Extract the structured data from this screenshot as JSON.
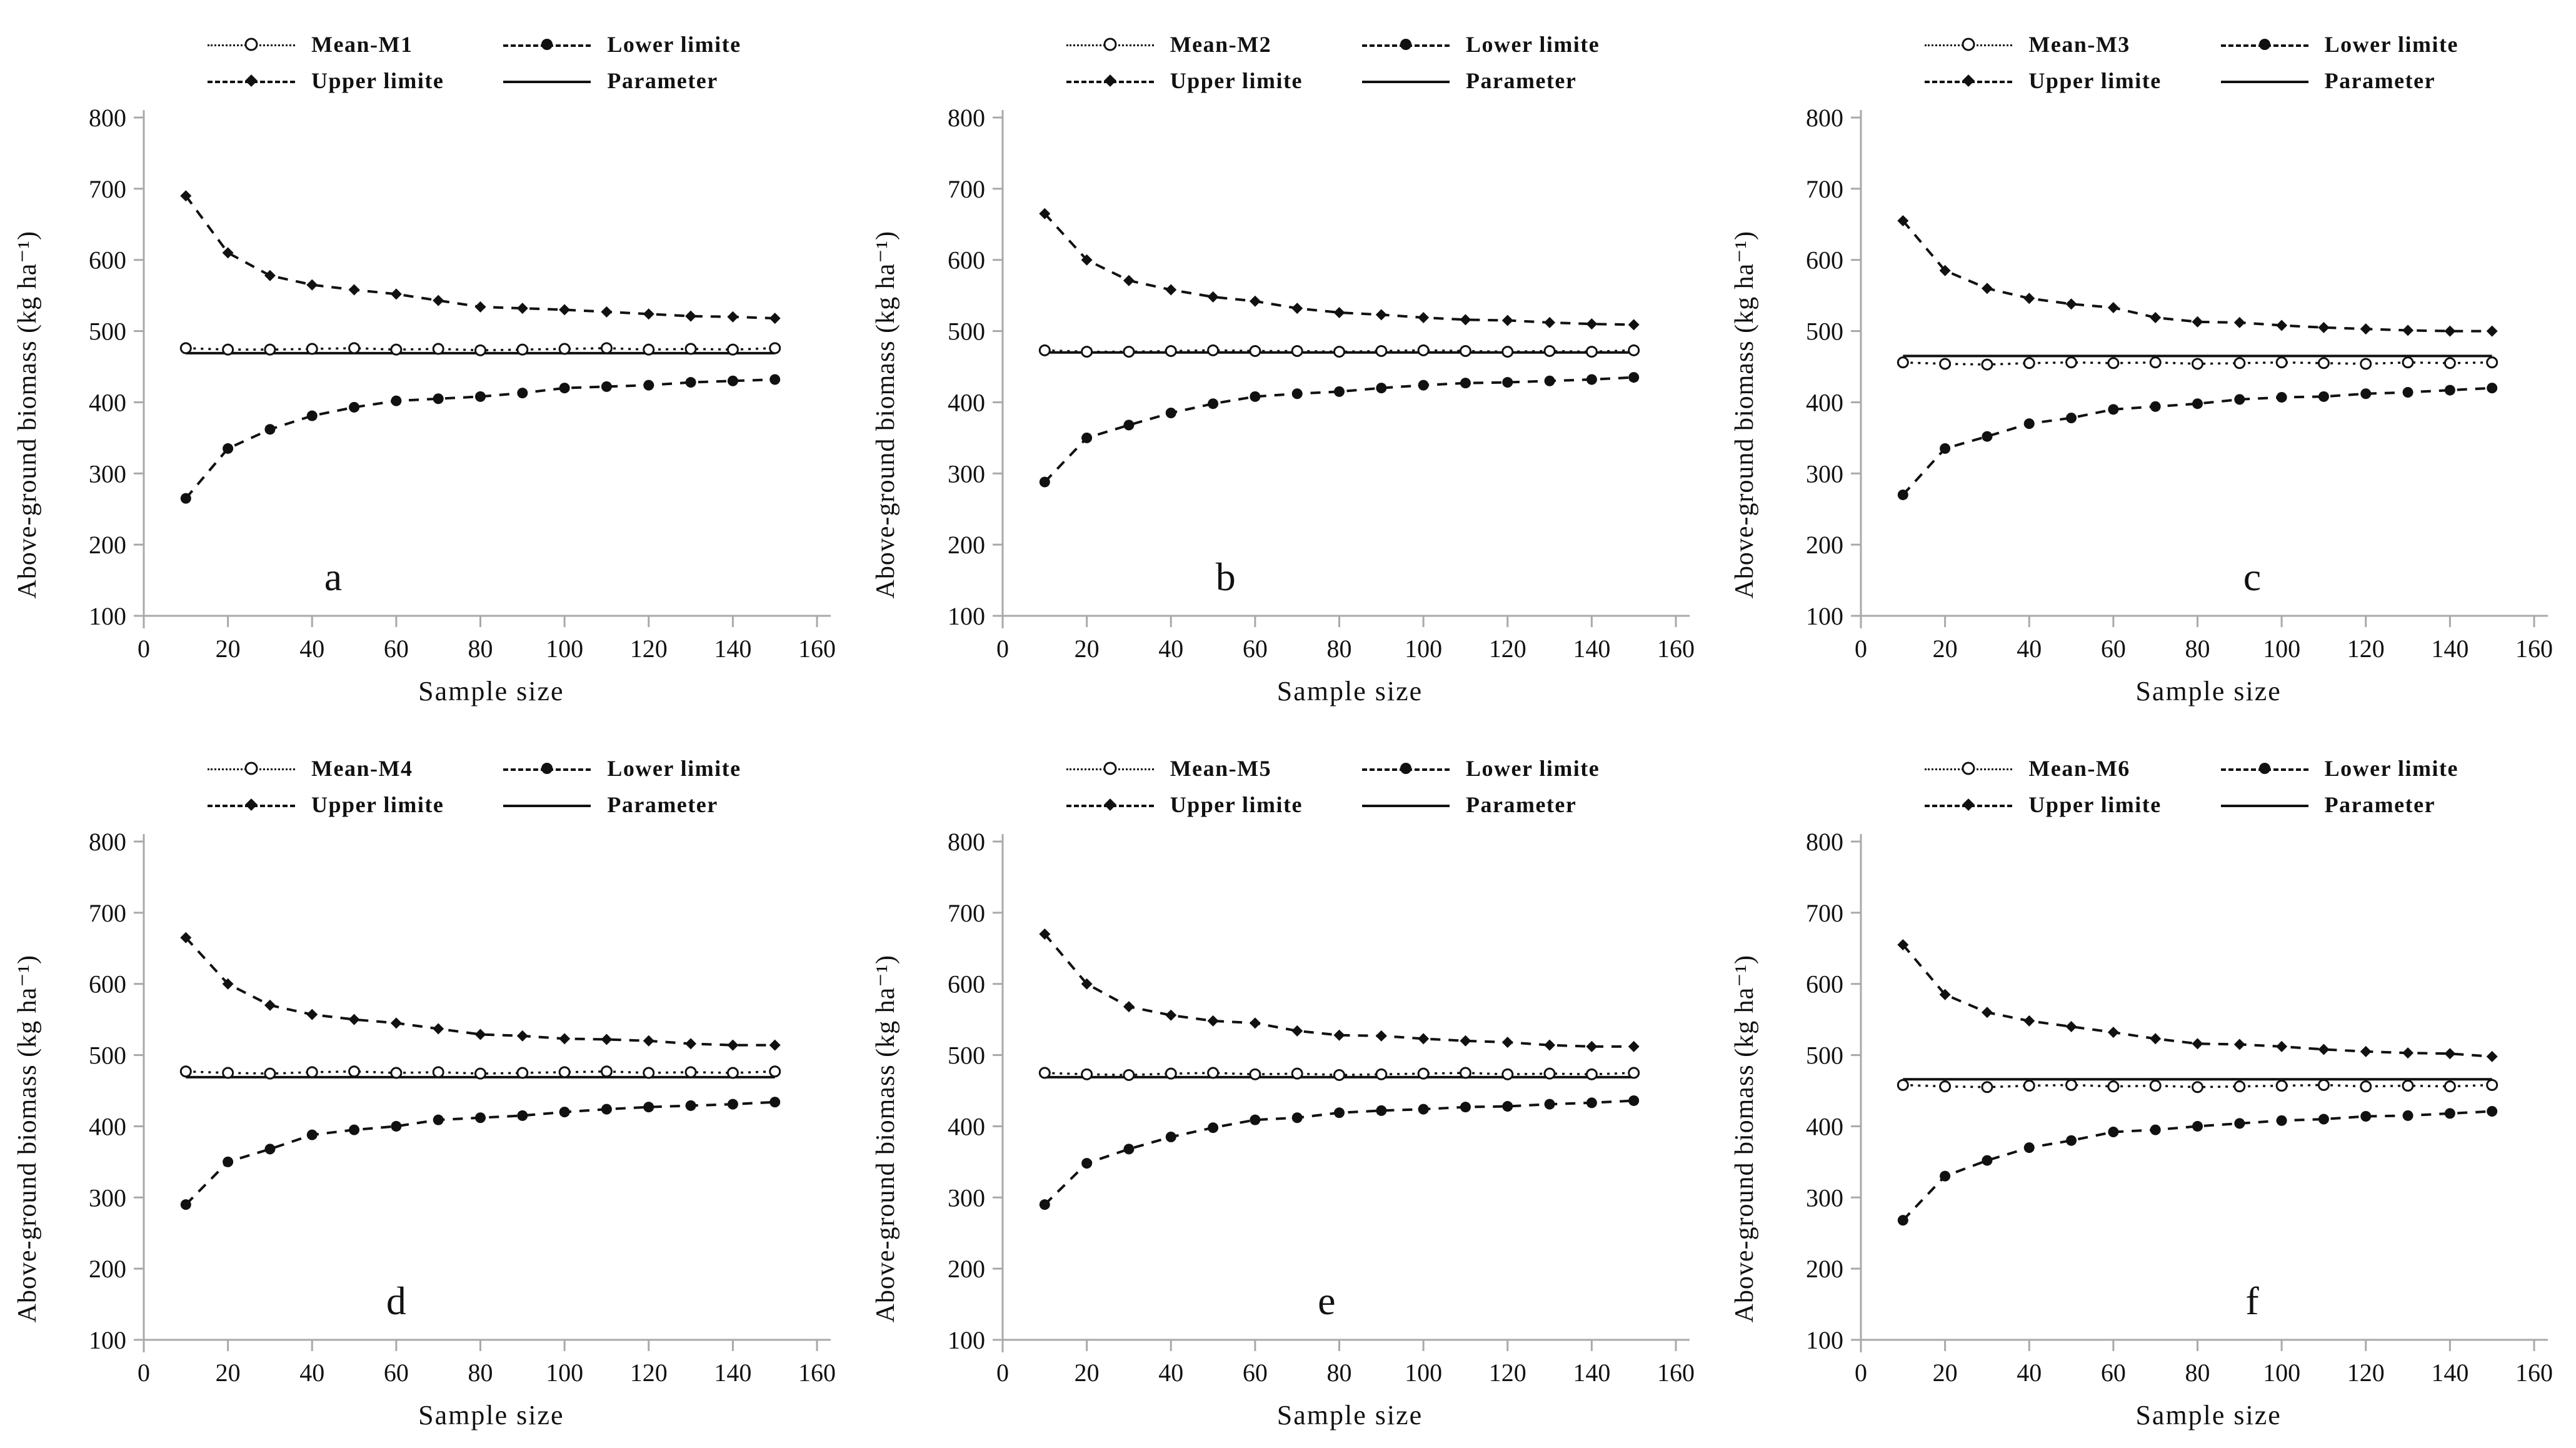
{
  "figure": {
    "background": "#ffffff",
    "text_color": "#111111",
    "axis_color": "#a9a9a9",
    "series_color": "#111111"
  },
  "chart_data": [
    {
      "type": "line",
      "panel_label": "a",
      "panel_label_x": 45,
      "xlabel": "Sample size",
      "ylabel": "Above-ground biomass (kg ha⁻¹)",
      "xlim": [
        0,
        160
      ],
      "ylim": [
        100,
        800
      ],
      "x_ticks": [
        0,
        20,
        40,
        60,
        80,
        100,
        120,
        140,
        160
      ],
      "y_ticks": [
        100,
        200,
        300,
        400,
        500,
        600,
        700,
        800
      ],
      "legend_position": "top",
      "x": [
        10,
        20,
        30,
        40,
        50,
        60,
        70,
        80,
        90,
        100,
        110,
        120,
        130,
        140,
        150
      ],
      "series": [
        {
          "name": "Mean-M1",
          "marker": "open-circle",
          "line": "dotted",
          "values": [
            476,
            474,
            474,
            475,
            476,
            474,
            475,
            473,
            474,
            475,
            476,
            474,
            475,
            474,
            476
          ]
        },
        {
          "name": "Lower limite",
          "marker": "filled-circle",
          "line": "dashed",
          "values": [
            265,
            335,
            362,
            381,
            393,
            402,
            405,
            408,
            413,
            420,
            422,
            424,
            428,
            430,
            432
          ]
        },
        {
          "name": "Upper limite",
          "marker": "filled-diamond",
          "line": "dashed",
          "values": [
            690,
            610,
            578,
            565,
            558,
            552,
            543,
            534,
            532,
            530,
            527,
            524,
            521,
            520,
            518
          ]
        },
        {
          "name": "Parameter",
          "marker": "none",
          "line": "solid",
          "values": [
            469,
            469,
            469,
            469,
            469,
            469,
            469,
            469,
            469,
            469,
            469,
            469,
            469,
            469,
            469
          ]
        }
      ]
    },
    {
      "type": "line",
      "panel_label": "b",
      "panel_label_x": 53,
      "xlabel": "Sample size",
      "ylabel": "Above-ground biomass (kg ha⁻¹)",
      "xlim": [
        0,
        160
      ],
      "ylim": [
        100,
        800
      ],
      "x_ticks": [
        0,
        20,
        40,
        60,
        80,
        100,
        120,
        140,
        160
      ],
      "y_ticks": [
        100,
        200,
        300,
        400,
        500,
        600,
        700,
        800
      ],
      "legend_position": "top",
      "x": [
        10,
        20,
        30,
        40,
        50,
        60,
        70,
        80,
        90,
        100,
        110,
        120,
        130,
        140,
        150
      ],
      "series": [
        {
          "name": "Mean-M2",
          "marker": "open-circle",
          "line": "dotted",
          "values": [
            473,
            471,
            471,
            472,
            473,
            472,
            472,
            471,
            472,
            473,
            472,
            471,
            472,
            471,
            473
          ]
        },
        {
          "name": "Lower limite",
          "marker": "filled-circle",
          "line": "dashed",
          "values": [
            288,
            350,
            368,
            385,
            398,
            408,
            412,
            415,
            420,
            424,
            427,
            428,
            430,
            432,
            435
          ]
        },
        {
          "name": "Upper limite",
          "marker": "filled-diamond",
          "line": "dashed",
          "values": [
            665,
            600,
            571,
            558,
            548,
            542,
            532,
            526,
            523,
            519,
            516,
            515,
            512,
            510,
            509
          ]
        },
        {
          "name": "Parameter",
          "marker": "none",
          "line": "solid",
          "values": [
            470,
            470,
            470,
            470,
            470,
            470,
            470,
            470,
            470,
            470,
            470,
            470,
            470,
            470,
            470
          ]
        }
      ]
    },
    {
      "type": "line",
      "panel_label": "c",
      "panel_label_x": 93,
      "xlabel": "Sample size",
      "ylabel": "Above-ground biomass (kg ha⁻¹)",
      "xlim": [
        0,
        160
      ],
      "ylim": [
        100,
        800
      ],
      "x_ticks": [
        0,
        20,
        40,
        60,
        80,
        100,
        120,
        140,
        160
      ],
      "y_ticks": [
        100,
        200,
        300,
        400,
        500,
        600,
        700,
        800
      ],
      "legend_position": "top",
      "x": [
        10,
        20,
        30,
        40,
        50,
        60,
        70,
        80,
        90,
        100,
        110,
        120,
        130,
        140,
        150
      ],
      "series": [
        {
          "name": "Mean-M3",
          "marker": "open-circle",
          "line": "dotted",
          "values": [
            456,
            454,
            453,
            455,
            456,
            455,
            456,
            454,
            455,
            456,
            455,
            454,
            456,
            455,
            456
          ]
        },
        {
          "name": "Lower limite",
          "marker": "filled-circle",
          "line": "dashed",
          "values": [
            270,
            335,
            352,
            370,
            378,
            390,
            394,
            398,
            404,
            407,
            408,
            412,
            414,
            417,
            420
          ]
        },
        {
          "name": "Upper limite",
          "marker": "filled-diamond",
          "line": "dashed",
          "values": [
            655,
            585,
            560,
            546,
            538,
            533,
            519,
            513,
            512,
            508,
            505,
            503,
            501,
            500,
            500
          ]
        },
        {
          "name": "Parameter",
          "marker": "none",
          "line": "solid",
          "values": [
            465,
            465,
            465,
            465,
            465,
            465,
            465,
            465,
            465,
            465,
            465,
            465,
            465,
            465,
            465
          ]
        }
      ]
    },
    {
      "type": "line",
      "panel_label": "d",
      "panel_label_x": 60,
      "xlabel": "Sample size",
      "ylabel": "Above-ground biomass (kg ha⁻¹)",
      "xlim": [
        0,
        160
      ],
      "ylim": [
        100,
        800
      ],
      "x_ticks": [
        0,
        20,
        40,
        60,
        80,
        100,
        120,
        140,
        160
      ],
      "y_ticks": [
        100,
        200,
        300,
        400,
        500,
        600,
        700,
        800
      ],
      "legend_position": "top",
      "x": [
        10,
        20,
        30,
        40,
        50,
        60,
        70,
        80,
        90,
        100,
        110,
        120,
        130,
        140,
        150
      ],
      "series": [
        {
          "name": "Mean-M4",
          "marker": "open-circle",
          "line": "dotted",
          "values": [
            477,
            475,
            474,
            476,
            477,
            475,
            476,
            474,
            475,
            476,
            477,
            475,
            476,
            475,
            477
          ]
        },
        {
          "name": "Lower limite",
          "marker": "filled-circle",
          "line": "dashed",
          "values": [
            290,
            350,
            368,
            388,
            395,
            400,
            409,
            412,
            415,
            420,
            424,
            427,
            429,
            431,
            434
          ]
        },
        {
          "name": "Upper limite",
          "marker": "filled-diamond",
          "line": "dashed",
          "values": [
            665,
            600,
            570,
            557,
            550,
            545,
            537,
            529,
            527,
            523,
            522,
            520,
            516,
            514,
            514
          ]
        },
        {
          "name": "Parameter",
          "marker": "none",
          "line": "solid",
          "values": [
            469,
            469,
            469,
            469,
            469,
            469,
            469,
            469,
            469,
            469,
            469,
            469,
            469,
            469,
            469
          ]
        }
      ]
    },
    {
      "type": "line",
      "panel_label": "e",
      "panel_label_x": 77,
      "xlabel": "Sample size",
      "ylabel": "Above-ground biomass (kg ha⁻¹)",
      "xlim": [
        0,
        160
      ],
      "ylim": [
        100,
        800
      ],
      "x_ticks": [
        0,
        20,
        40,
        60,
        80,
        100,
        120,
        140,
        160
      ],
      "y_ticks": [
        100,
        200,
        300,
        400,
        500,
        600,
        700,
        800
      ],
      "legend_position": "top",
      "x": [
        10,
        20,
        30,
        40,
        50,
        60,
        70,
        80,
        90,
        100,
        110,
        120,
        130,
        140,
        150
      ],
      "series": [
        {
          "name": "Mean-M5",
          "marker": "open-circle",
          "line": "dotted",
          "values": [
            475,
            473,
            472,
            474,
            475,
            473,
            474,
            472,
            473,
            474,
            475,
            473,
            474,
            473,
            475
          ]
        },
        {
          "name": "Lower limite",
          "marker": "filled-circle",
          "line": "dashed",
          "values": [
            290,
            348,
            368,
            385,
            398,
            409,
            412,
            419,
            422,
            424,
            427,
            428,
            431,
            433,
            436
          ]
        },
        {
          "name": "Upper limite",
          "marker": "filled-diamond",
          "line": "dashed",
          "values": [
            670,
            600,
            568,
            556,
            548,
            545,
            534,
            528,
            527,
            523,
            520,
            518,
            514,
            512,
            512
          ]
        },
        {
          "name": "Parameter",
          "marker": "none",
          "line": "solid",
          "values": [
            469,
            469,
            469,
            469,
            469,
            469,
            469,
            469,
            469,
            469,
            469,
            469,
            469,
            469,
            469
          ]
        }
      ]
    },
    {
      "type": "line",
      "panel_label": "f",
      "panel_label_x": 93,
      "xlabel": "Sample size",
      "ylabel": "Above-ground biomass (kg ha⁻¹)",
      "xlim": [
        0,
        160
      ],
      "ylim": [
        100,
        800
      ],
      "x_ticks": [
        0,
        20,
        40,
        60,
        80,
        100,
        120,
        140,
        160
      ],
      "y_ticks": [
        100,
        200,
        300,
        400,
        500,
        600,
        700,
        800
      ],
      "legend_position": "top",
      "x": [
        10,
        20,
        30,
        40,
        50,
        60,
        70,
        80,
        90,
        100,
        110,
        120,
        130,
        140,
        150
      ],
      "series": [
        {
          "name": "Mean-M6",
          "marker": "open-circle",
          "line": "dotted",
          "values": [
            458,
            456,
            455,
            457,
            458,
            456,
            457,
            455,
            456,
            457,
            458,
            456,
            457,
            456,
            458
          ]
        },
        {
          "name": "Lower limite",
          "marker": "filled-circle",
          "line": "dashed",
          "values": [
            268,
            330,
            352,
            370,
            380,
            392,
            395,
            400,
            404,
            408,
            410,
            414,
            415,
            418,
            421
          ]
        },
        {
          "name": "Upper limite",
          "marker": "filled-diamond",
          "line": "dashed",
          "values": [
            655,
            585,
            560,
            548,
            540,
            532,
            523,
            516,
            515,
            512,
            508,
            505,
            503,
            502,
            498
          ]
        },
        {
          "name": "Parameter",
          "marker": "none",
          "line": "solid",
          "values": [
            466,
            466,
            466,
            466,
            466,
            466,
            466,
            466,
            466,
            466,
            466,
            466,
            466,
            466,
            466
          ]
        }
      ]
    }
  ]
}
